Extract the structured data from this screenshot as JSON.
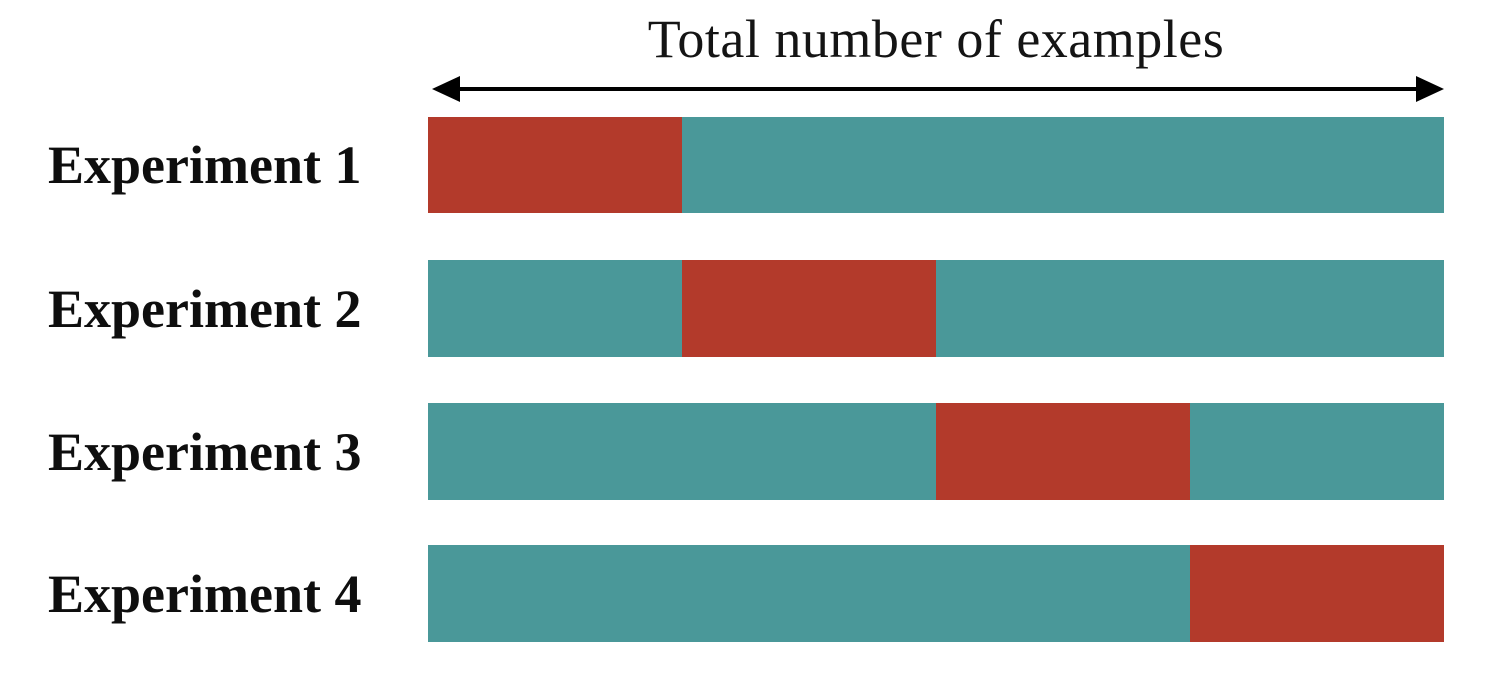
{
  "title": "Total number of examples",
  "colors": {
    "train_segment": "#4A9899",
    "validation_segment": "#B33A2B",
    "arrow": "#000000",
    "text": "#141414",
    "background": "#FFFFFF"
  },
  "rows": [
    {
      "label": "Experiment 1",
      "validation_segment": {
        "start_pct": 0,
        "width_pct": 25
      }
    },
    {
      "label": "Experiment 2",
      "validation_segment": {
        "start_pct": 25,
        "width_pct": 25
      }
    },
    {
      "label": "Experiment 3",
      "validation_segment": {
        "start_pct": 50,
        "width_pct": 25
      }
    },
    {
      "label": "Experiment 4",
      "validation_segment": {
        "start_pct": 75,
        "width_pct": 25
      }
    }
  ]
}
